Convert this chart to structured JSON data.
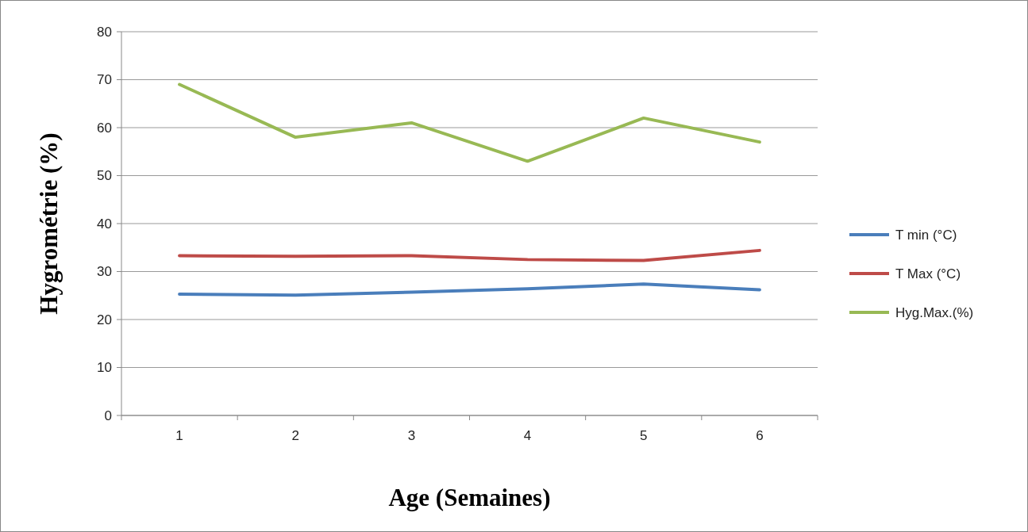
{
  "chart_data": {
    "type": "line",
    "xlabel": "Age (Semaines)",
    "ylabel": "Hygrométrie (%)",
    "categories": [
      "1",
      "2",
      "3",
      "4",
      "5",
      "6"
    ],
    "series": [
      {
        "name": "T min (°C)",
        "color": "#4a7ebb",
        "values": [
          25.3,
          25.1,
          25.7,
          26.4,
          27.4,
          26.2
        ]
      },
      {
        "name": "T Max (°C)",
        "color": "#be4b48",
        "values": [
          33.3,
          33.2,
          33.3,
          32.5,
          32.3,
          34.4
        ]
      },
      {
        "name": "Hyg.Max.(%)",
        "color": "#98b954",
        "values": [
          69,
          58,
          61,
          53,
          62,
          57
        ]
      }
    ],
    "ylim": [
      0,
      80
    ],
    "yticks": [
      0,
      10,
      20,
      30,
      40,
      50,
      60,
      70,
      80
    ],
    "grid": "y",
    "legend": "right",
    "marker": "none",
    "line_style": "solid"
  }
}
